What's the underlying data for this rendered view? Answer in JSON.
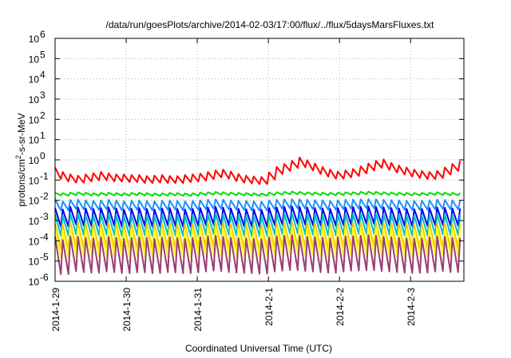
{
  "chart_data": {
    "type": "line",
    "title": "/data/run/goesPlots/archive/2014-02-03/17:00/flux/../flux/5daysMarsFluxes.txt",
    "xlabel": "Coordinated Universal Time (UTC)",
    "ylabel": {
      "pre": "protons/cm",
      "sup": "2",
      "post": "-s-sr-MeV"
    },
    "yscale": "log",
    "ylim_exp": [
      -6,
      6
    ],
    "yticks": [
      {
        "base": "10",
        "exp": "-6",
        "e": -6
      },
      {
        "base": "10",
        "exp": "-5",
        "e": -5
      },
      {
        "base": "10",
        "exp": "-4",
        "e": -4
      },
      {
        "base": "10",
        "exp": "-3",
        "e": -3
      },
      {
        "base": "10",
        "exp": "-2",
        "e": -2
      },
      {
        "base": "10",
        "exp": "-1",
        "e": -1
      },
      {
        "base": "10",
        "exp": "0",
        "e": 0
      },
      {
        "base": "10",
        "exp": "1",
        "e": 1
      },
      {
        "base": "10",
        "exp": "2",
        "e": 2
      },
      {
        "base": "10",
        "exp": "3",
        "e": 3
      },
      {
        "base": "10",
        "exp": "4",
        "e": 4
      },
      {
        "base": "10",
        "exp": "5",
        "e": 5
      },
      {
        "base": "10",
        "exp": "6",
        "e": 6
      }
    ],
    "xlim_days": [
      0,
      5.75
    ],
    "xticks": [
      {
        "label": "2014-1-29",
        "day": 0
      },
      {
        "label": "2014-1-30",
        "day": 1
      },
      {
        "label": "2014-1-31",
        "day": 2
      },
      {
        "label": "2014-2-1",
        "day": 3
      },
      {
        "label": "2014-2-2",
        "day": 4
      },
      {
        "label": "2014-2-3",
        "day": 5
      }
    ],
    "grid": true,
    "series": [
      {
        "color": "#ff0000",
        "peaks_log10": [
          -0.38,
          -0.6,
          -0.72,
          -0.78,
          -0.72,
          -0.66,
          -0.6,
          -0.66,
          -0.72,
          -0.72,
          -0.75,
          -0.75,
          -0.8,
          -0.78,
          -0.75,
          -0.8,
          -0.8,
          -0.75,
          -0.72,
          -0.68,
          -0.6,
          -0.52,
          -0.48,
          -0.58,
          -0.7,
          -0.78,
          -0.82,
          -0.85,
          -0.62,
          -0.35,
          -0.2,
          -0.05,
          0.12,
          -0.02,
          -0.18,
          -0.35,
          -0.48,
          -0.58,
          -0.52,
          -0.45,
          -0.32,
          -0.18,
          -0.05,
          0.02,
          -0.15,
          -0.28,
          -0.38,
          -0.48,
          -0.55,
          -0.6,
          -0.55,
          -0.38,
          -0.2,
          -0.05
        ]
      },
      {
        "color": "#00dd00",
        "peaks_log10": [
          -1.62,
          -1.65,
          -1.62,
          -1.6,
          -1.62,
          -1.65,
          -1.63,
          -1.62,
          -1.64,
          -1.65,
          -1.63,
          -1.62,
          -1.64,
          -1.66,
          -1.65,
          -1.63,
          -1.64,
          -1.66,
          -1.65,
          -1.62,
          -1.6,
          -1.58,
          -1.6,
          -1.62,
          -1.63,
          -1.64,
          -1.65,
          -1.66,
          -1.62,
          -1.6,
          -1.58,
          -1.57,
          -1.58,
          -1.6,
          -1.61,
          -1.62,
          -1.63,
          -1.62,
          -1.6,
          -1.6,
          -1.58,
          -1.57,
          -1.58,
          -1.6,
          -1.61,
          -1.62,
          -1.63,
          -1.64,
          -1.63,
          -1.62,
          -1.6,
          -1.62,
          -1.63,
          -1.63
        ]
      },
      {
        "color": "#1e90ff",
        "peaks_log10": [
          -1.95,
          -2.05,
          -1.98,
          -1.96,
          -2.0,
          -2.02,
          -2.0,
          -1.98,
          -2.0,
          -2.05,
          -2.02,
          -2.0,
          -2.03,
          -2.05,
          -2.02,
          -2.0,
          -2.02,
          -2.05,
          -2.03,
          -2.0,
          -1.97,
          -1.95,
          -1.97,
          -2.0,
          -2.02,
          -2.03,
          -2.05,
          -2.06,
          -2.0,
          -1.97,
          -1.95,
          -1.94,
          -1.95,
          -1.97,
          -1.99,
          -2.0,
          -2.02,
          -2.0,
          -1.97,
          -1.96,
          -1.95,
          -1.94,
          -1.95,
          -1.97,
          -1.99,
          -2.0,
          -2.02,
          -2.03,
          -2.02,
          -2.0,
          -1.97,
          -1.98,
          -2.0,
          -2.0
        ]
      },
      {
        "color": "#0000ee",
        "peaks_log10": [
          -2.38,
          -2.45,
          -2.32,
          -2.35,
          -2.4,
          -2.42,
          -2.38,
          -2.35,
          -2.4,
          -2.45,
          -2.42,
          -2.38,
          -2.42,
          -2.45,
          -2.4,
          -2.38,
          -2.42,
          -2.45,
          -2.42,
          -2.38,
          -2.35,
          -2.32,
          -2.36,
          -2.4,
          -2.42,
          -2.44,
          -2.45,
          -2.46,
          -2.38,
          -2.35,
          -2.32,
          -2.3,
          -2.32,
          -2.36,
          -2.38,
          -2.4,
          -2.42,
          -2.38,
          -2.35,
          -2.33,
          -2.32,
          -2.3,
          -2.32,
          -2.35,
          -2.38,
          -2.4,
          -2.42,
          -2.43,
          -2.42,
          -2.38,
          -2.35,
          -2.37,
          -2.4,
          -2.4
        ]
      },
      {
        "color": "#00bfbf",
        "peaks_log10": [
          -2.7,
          -2.75,
          -2.65,
          -2.68,
          -2.72,
          -2.74,
          -2.7,
          -2.68,
          -2.72,
          -2.76,
          -2.73,
          -2.7,
          -2.73,
          -2.76,
          -2.72,
          -2.7,
          -2.73,
          -2.76,
          -2.73,
          -2.7,
          -2.67,
          -2.65,
          -2.68,
          -2.72,
          -2.74,
          -2.75,
          -2.76,
          -2.77,
          -2.7,
          -2.67,
          -2.65,
          -2.63,
          -2.65,
          -2.68,
          -2.7,
          -2.72,
          -2.74,
          -2.7,
          -2.67,
          -2.66,
          -2.65,
          -2.63,
          -2.65,
          -2.68,
          -2.7,
          -2.72,
          -2.74,
          -2.75,
          -2.74,
          -2.7,
          -2.67,
          -2.69,
          -2.72,
          -2.72
        ]
      },
      {
        "color": "#f2cc00",
        "peaks_log10": [
          -3.15,
          -3.2,
          -3.1,
          -3.12,
          -3.16,
          -3.18,
          -3.14,
          -3.12,
          -3.16,
          -3.2,
          -3.17,
          -3.14,
          -3.17,
          -3.2,
          -3.16,
          -3.14,
          -3.17,
          -3.2,
          -3.17,
          -3.14,
          -3.11,
          -3.09,
          -3.12,
          -3.16,
          -3.18,
          -3.19,
          -3.2,
          -3.21,
          -3.14,
          -3.11,
          -3.09,
          -3.07,
          -3.09,
          -3.12,
          -3.14,
          -3.16,
          -3.18,
          -3.14,
          -3.11,
          -3.1,
          -3.09,
          -3.07,
          -3.09,
          -3.12,
          -3.14,
          -3.16,
          -3.18,
          -3.19,
          -3.18,
          -3.14,
          -3.11,
          -3.13,
          -3.16,
          -3.16
        ]
      },
      {
        "color": "#ffff22",
        "peaks_log10": [
          -3.4,
          -3.48,
          -3.35,
          -3.38,
          -3.42,
          -3.45,
          -3.4,
          -3.38,
          -3.42,
          -3.46,
          -3.43,
          -3.4,
          -3.43,
          -3.46,
          -3.42,
          -3.4,
          -3.43,
          -3.46,
          -3.43,
          -3.4,
          -3.37,
          -3.35,
          -3.38,
          -3.42,
          -3.44,
          -3.45,
          -3.46,
          -3.47,
          -3.4,
          -3.37,
          -3.35,
          -3.33,
          -3.35,
          -3.38,
          -3.4,
          -3.42,
          -3.44,
          -3.4,
          -3.37,
          -3.36,
          -3.35,
          -3.33,
          -3.35,
          -3.38,
          -3.4,
          -3.42,
          -3.44,
          -3.45,
          -3.44,
          -3.4,
          -3.37,
          -3.39,
          -3.42,
          -3.42
        ]
      },
      {
        "color": "#9a3d77",
        "peaks_log10": [
          -3.8,
          -3.95,
          -3.78,
          -3.8,
          -3.85,
          -3.88,
          -3.82,
          -3.8,
          -3.85,
          -3.9,
          -3.86,
          -3.82,
          -3.86,
          -3.9,
          -3.85,
          -3.82,
          -3.86,
          -3.9,
          -3.86,
          -3.82,
          -3.78,
          -3.75,
          -3.8,
          -3.85,
          -3.87,
          -3.89,
          -3.9,
          -3.92,
          -3.82,
          -3.78,
          -3.75,
          -3.72,
          -3.75,
          -3.8,
          -3.82,
          -3.85,
          -3.88,
          -3.82,
          -3.78,
          -3.77,
          -3.75,
          -3.72,
          -3.75,
          -3.8,
          -3.82,
          -3.85,
          -3.88,
          -3.89,
          -3.88,
          -3.82,
          -3.78,
          -3.8,
          -3.85,
          -3.85
        ]
      }
    ],
    "series_drop_log10": [
      0.35,
      0.12,
      0.45,
      0.85,
      1.0,
      1.2,
      1.35,
      1.7
    ]
  }
}
